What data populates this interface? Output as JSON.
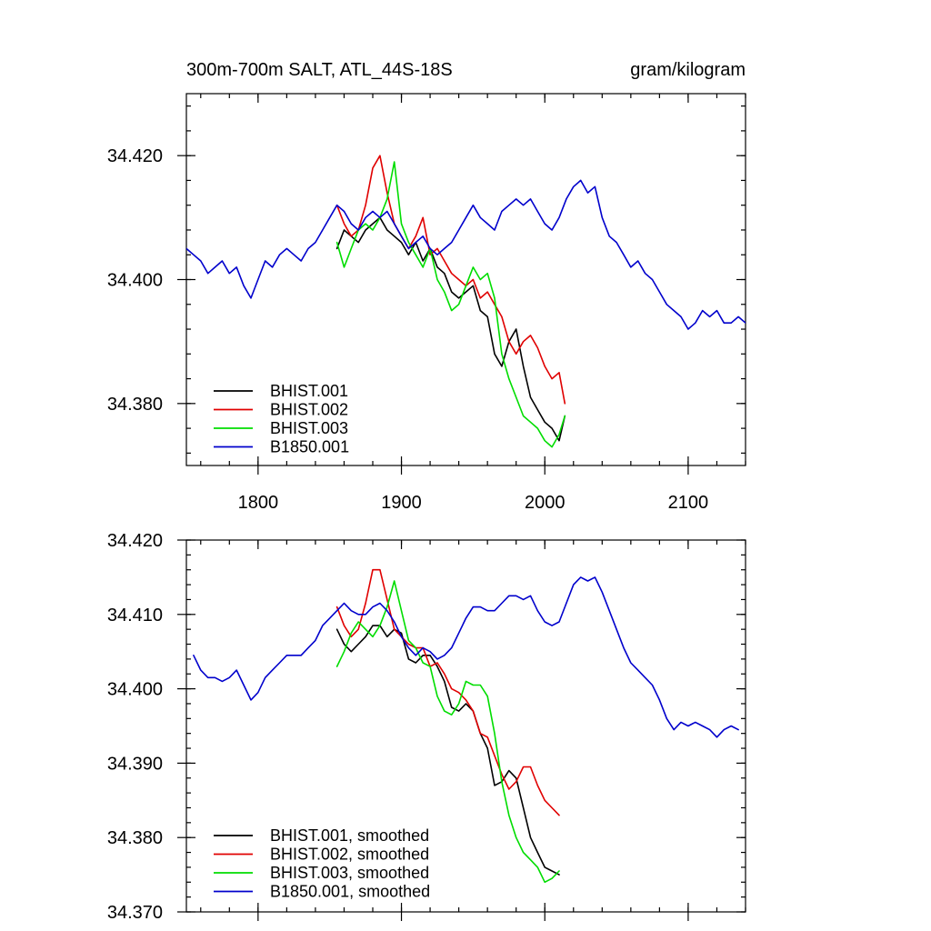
{
  "chart_data": [
    {
      "type": "line",
      "title": "300m-700m SALT, ATL_44S-18S",
      "units": "gram/kilogram",
      "xlim": [
        1750,
        2140
      ],
      "ylim": [
        34.37,
        34.43
      ],
      "x_ticks": [
        1800,
        1900,
        2000,
        2100
      ],
      "x_tick_labels": [
        "1800",
        "1900",
        "2000",
        "2100"
      ],
      "y_ticks": [
        34.38,
        34.4,
        34.42
      ],
      "y_tick_labels": [
        "34.380",
        "34.400",
        "34.420"
      ],
      "legend_position": "bottom-left",
      "series": [
        {
          "name": "BHIST.001",
          "color": "#000000",
          "x": [
            1855,
            1860,
            1865,
            1870,
            1875,
            1880,
            1885,
            1890,
            1895,
            1900,
            1905,
            1910,
            1915,
            1920,
            1925,
            1930,
            1935,
            1940,
            1945,
            1950,
            1955,
            1960,
            1965,
            1970,
            1975,
            1980,
            1985,
            1990,
            1995,
            2000,
            2005,
            2010,
            2014
          ],
          "y": [
            34.405,
            34.408,
            34.407,
            34.406,
            34.408,
            34.409,
            34.41,
            34.408,
            34.407,
            34.406,
            34.404,
            34.406,
            34.403,
            34.405,
            34.402,
            34.401,
            34.398,
            34.397,
            34.398,
            34.399,
            34.395,
            34.394,
            34.388,
            34.386,
            34.39,
            34.392,
            34.386,
            34.381,
            34.379,
            34.377,
            34.376,
            34.374,
            34.378
          ]
        },
        {
          "name": "BHIST.002",
          "color": "#e00000",
          "x": [
            1855,
            1860,
            1865,
            1870,
            1875,
            1880,
            1885,
            1890,
            1895,
            1900,
            1905,
            1910,
            1915,
            1920,
            1925,
            1930,
            1935,
            1940,
            1945,
            1950,
            1955,
            1960,
            1965,
            1970,
            1975,
            1980,
            1985,
            1990,
            1995,
            2000,
            2005,
            2010,
            2014
          ],
          "y": [
            34.412,
            34.409,
            34.407,
            34.408,
            34.412,
            34.418,
            34.42,
            34.414,
            34.409,
            34.407,
            34.405,
            34.407,
            34.41,
            34.404,
            34.405,
            34.403,
            34.401,
            34.4,
            34.399,
            34.4,
            34.397,
            34.398,
            34.396,
            34.394,
            34.39,
            34.388,
            34.39,
            34.391,
            34.389,
            34.386,
            34.384,
            34.385,
            34.38
          ]
        },
        {
          "name": "BHIST.003",
          "color": "#00dd00",
          "x": [
            1855,
            1860,
            1865,
            1870,
            1875,
            1880,
            1885,
            1890,
            1895,
            1900,
            1905,
            1910,
            1915,
            1920,
            1925,
            1930,
            1935,
            1940,
            1945,
            1950,
            1955,
            1960,
            1965,
            1970,
            1975,
            1980,
            1985,
            1990,
            1995,
            2000,
            2005,
            2010,
            2014
          ],
          "y": [
            34.406,
            34.402,
            34.405,
            34.408,
            34.409,
            34.408,
            34.41,
            34.413,
            34.419,
            34.409,
            34.406,
            34.404,
            34.402,
            34.405,
            34.4,
            34.398,
            34.395,
            34.396,
            34.399,
            34.402,
            34.4,
            34.401,
            34.397,
            34.388,
            34.384,
            34.381,
            34.378,
            34.377,
            34.376,
            34.374,
            34.373,
            34.375,
            34.378
          ]
        },
        {
          "name": "B1850.001",
          "color": "#0000cc",
          "x": [
            1750,
            1755,
            1760,
            1765,
            1770,
            1775,
            1780,
            1785,
            1790,
            1795,
            1800,
            1805,
            1810,
            1815,
            1820,
            1825,
            1830,
            1835,
            1840,
            1845,
            1850,
            1855,
            1860,
            1865,
            1870,
            1875,
            1880,
            1885,
            1890,
            1895,
            1900,
            1905,
            1910,
            1915,
            1920,
            1925,
            1930,
            1935,
            1940,
            1945,
            1950,
            1955,
            1960,
            1965,
            1970,
            1975,
            1980,
            1985,
            1990,
            1995,
            2000,
            2005,
            2010,
            2015,
            2020,
            2025,
            2030,
            2035,
            2040,
            2045,
            2050,
            2055,
            2060,
            2065,
            2070,
            2075,
            2080,
            2085,
            2090,
            2095,
            2100,
            2105,
            2110,
            2115,
            2120,
            2125,
            2130,
            2135,
            2140
          ],
          "y": [
            34.405,
            34.404,
            34.403,
            34.401,
            34.402,
            34.403,
            34.401,
            34.402,
            34.399,
            34.397,
            34.4,
            34.403,
            34.402,
            34.404,
            34.405,
            34.404,
            34.403,
            34.405,
            34.406,
            34.408,
            34.41,
            34.412,
            34.411,
            34.409,
            34.408,
            34.41,
            34.411,
            34.41,
            34.411,
            34.409,
            34.407,
            34.405,
            34.406,
            34.407,
            34.405,
            34.404,
            34.405,
            34.406,
            34.408,
            34.41,
            34.412,
            34.41,
            34.409,
            34.408,
            34.411,
            34.412,
            34.413,
            34.412,
            34.413,
            34.411,
            34.409,
            34.408,
            34.41,
            34.413,
            34.415,
            34.416,
            34.414,
            34.415,
            34.41,
            34.407,
            34.406,
            34.404,
            34.402,
            34.403,
            34.401,
            34.4,
            34.398,
            34.396,
            34.395,
            34.394,
            34.392,
            34.393,
            34.395,
            34.394,
            34.395,
            34.393,
            34.393,
            34.394,
            34.393
          ]
        }
      ]
    },
    {
      "type": "line",
      "xlim": [
        1750,
        2140
      ],
      "ylim": [
        34.37,
        34.42
      ],
      "x_ticks": [
        1800,
        1900,
        2000,
        2100
      ],
      "x_tick_labels": [],
      "y_ticks": [
        34.37,
        34.38,
        34.39,
        34.4,
        34.41,
        34.42
      ],
      "y_tick_labels": [
        "34.370",
        "34.380",
        "34.390",
        "34.400",
        "34.410",
        "34.420"
      ],
      "legend_position": "bottom-left",
      "series": [
        {
          "name": "BHIST.001, smoothed",
          "color": "#000000",
          "x": [
            1855,
            1860,
            1865,
            1870,
            1875,
            1880,
            1885,
            1890,
            1895,
            1900,
            1905,
            1910,
            1915,
            1920,
            1925,
            1930,
            1935,
            1940,
            1945,
            1950,
            1955,
            1960,
            1965,
            1970,
            1975,
            1980,
            1985,
            1990,
            1995,
            2000,
            2005,
            2010
          ],
          "y": [
            34.408,
            34.406,
            34.405,
            34.406,
            34.407,
            34.4085,
            34.4085,
            34.407,
            34.408,
            34.4075,
            34.404,
            34.4035,
            34.4045,
            34.4045,
            34.403,
            34.401,
            34.3975,
            34.397,
            34.398,
            34.397,
            34.394,
            34.392,
            34.387,
            34.3875,
            34.389,
            34.388,
            34.384,
            34.38,
            34.378,
            34.376,
            34.3755,
            34.375
          ]
        },
        {
          "name": "BHIST.002, smoothed",
          "color": "#e00000",
          "x": [
            1855,
            1860,
            1865,
            1870,
            1875,
            1880,
            1885,
            1890,
            1895,
            1900,
            1905,
            1910,
            1915,
            1920,
            1925,
            1930,
            1935,
            1940,
            1945,
            1950,
            1955,
            1960,
            1965,
            1970,
            1975,
            1980,
            1985,
            1990,
            1995,
            2000,
            2005,
            2010
          ],
          "y": [
            34.411,
            34.4085,
            34.407,
            34.408,
            34.4115,
            34.416,
            34.416,
            34.412,
            34.408,
            34.407,
            34.406,
            34.4055,
            34.4055,
            34.403,
            34.4035,
            34.402,
            34.4,
            34.3995,
            34.3985,
            34.397,
            34.394,
            34.3935,
            34.391,
            34.3885,
            34.3865,
            34.3875,
            34.3895,
            34.3895,
            34.387,
            34.385,
            34.384,
            34.383
          ]
        },
        {
          "name": "BHIST.003, smoothed",
          "color": "#00dd00",
          "x": [
            1855,
            1860,
            1865,
            1870,
            1875,
            1880,
            1885,
            1890,
            1895,
            1900,
            1905,
            1910,
            1915,
            1920,
            1925,
            1930,
            1935,
            1940,
            1945,
            1950,
            1955,
            1960,
            1965,
            1970,
            1975,
            1980,
            1985,
            1990,
            1995,
            2000,
            2005,
            2010
          ],
          "y": [
            34.403,
            34.405,
            34.4075,
            34.409,
            34.408,
            34.407,
            34.4085,
            34.411,
            34.4145,
            34.4105,
            34.4065,
            34.4055,
            34.4035,
            34.403,
            34.399,
            34.397,
            34.3965,
            34.398,
            34.401,
            34.4005,
            34.4005,
            34.399,
            34.394,
            34.3875,
            34.383,
            34.38,
            34.378,
            34.377,
            34.376,
            34.374,
            34.3745,
            34.3755
          ]
        },
        {
          "name": "B1850.001, smoothed",
          "color": "#0000cc",
          "x": [
            1755,
            1760,
            1765,
            1770,
            1775,
            1780,
            1785,
            1790,
            1795,
            1800,
            1805,
            1810,
            1815,
            1820,
            1825,
            1830,
            1835,
            1840,
            1845,
            1850,
            1855,
            1860,
            1865,
            1870,
            1875,
            1880,
            1885,
            1890,
            1895,
            1900,
            1905,
            1910,
            1915,
            1920,
            1925,
            1930,
            1935,
            1940,
            1945,
            1950,
            1955,
            1960,
            1965,
            1970,
            1975,
            1980,
            1985,
            1990,
            1995,
            2000,
            2005,
            2010,
            2015,
            2020,
            2025,
            2030,
            2035,
            2040,
            2045,
            2050,
            2055,
            2060,
            2065,
            2070,
            2075,
            2080,
            2085,
            2090,
            2095,
            2100,
            2105,
            2110,
            2115,
            2120,
            2125,
            2130,
            2135
          ],
          "y": [
            34.4045,
            34.4025,
            34.4015,
            34.4015,
            34.401,
            34.4015,
            34.4025,
            34.4005,
            34.3985,
            34.3995,
            34.4015,
            34.4025,
            34.4035,
            34.4045,
            34.4045,
            34.4045,
            34.4055,
            34.4065,
            34.4085,
            34.4095,
            34.4105,
            34.4115,
            34.4105,
            34.41,
            34.41,
            34.411,
            34.4115,
            34.4105,
            34.409,
            34.407,
            34.4055,
            34.4045,
            34.4055,
            34.405,
            34.404,
            34.4045,
            34.4055,
            34.4075,
            34.4095,
            34.411,
            34.411,
            34.4105,
            34.4105,
            34.4115,
            34.4125,
            34.4125,
            34.412,
            34.4125,
            34.4105,
            34.409,
            34.4085,
            34.409,
            34.4115,
            34.414,
            34.415,
            34.4145,
            34.415,
            34.413,
            34.4105,
            34.408,
            34.4055,
            34.4035,
            34.4025,
            34.4015,
            34.4005,
            34.3985,
            34.396,
            34.3945,
            34.3955,
            34.395,
            34.3955,
            34.395,
            34.3945,
            34.3935,
            34.3945,
            34.395,
            34.3945
          ]
        }
      ]
    }
  ]
}
